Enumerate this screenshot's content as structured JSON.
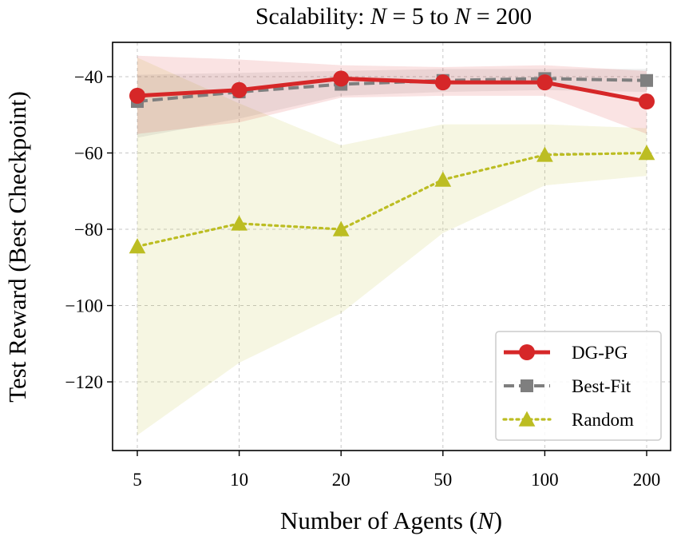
{
  "chart_data": {
    "type": "line",
    "title": "Scalability: N = 5 to N = 200",
    "title_parts": [
      {
        "text": "Scalability: ",
        "italic": false
      },
      {
        "text": "N",
        "italic": true
      },
      {
        "text": " = 5 to ",
        "italic": false
      },
      {
        "text": "N",
        "italic": true
      },
      {
        "text": " = 200",
        "italic": false
      }
    ],
    "xlabel": "Number of Agents (N)",
    "xlabel_parts": [
      {
        "text": "Number of Agents (",
        "italic": false
      },
      {
        "text": "N",
        "italic": true
      },
      {
        "text": ")",
        "italic": false
      }
    ],
    "ylabel": "Test Reward (Best Checkpoint)",
    "categories": [
      "5",
      "10",
      "20",
      "50",
      "100",
      "200"
    ],
    "ylim": [
      -138,
      -31
    ],
    "yticks": [
      -40,
      -60,
      -80,
      -100,
      -120
    ],
    "ytick_labels": [
      "−40",
      "−60",
      "−80",
      "−100",
      "−120"
    ],
    "grid": true,
    "legend_position": "lower-right",
    "series": [
      {
        "name": "DG-PG",
        "color": "#d62728",
        "marker": "circle",
        "linestyle": "solid",
        "values": [
          -45.0,
          -43.5,
          -40.5,
          -41.5,
          -41.5,
          -46.5
        ],
        "band_upper": [
          -34.5,
          -35.5,
          -37.0,
          -37.5,
          -37.0,
          -38.5
        ],
        "band_lower": [
          -55.0,
          -52.0,
          -45.5,
          -45.0,
          -45.0,
          -55.0
        ]
      },
      {
        "name": "Best-Fit",
        "color": "#7f7f7f",
        "marker": "square",
        "linestyle": "dashed",
        "values": [
          -46.5,
          -44.0,
          -42.0,
          -41.0,
          -40.5,
          -41.0
        ],
        "band_upper": [
          -39.5,
          -39.0,
          -38.5,
          -38.0,
          -38.0,
          -38.0
        ],
        "band_lower": [
          -56.0,
          -51.0,
          -45.0,
          -44.0,
          -43.5,
          -44.0
        ]
      },
      {
        "name": "Random",
        "color": "#bcbd22",
        "marker": "triangle",
        "linestyle": "dotted",
        "values": [
          -84.5,
          -78.5,
          -80.0,
          -67.0,
          -60.5,
          -60.0
        ],
        "band_upper": [
          -35.0,
          -47.0,
          -58.0,
          -52.5,
          -52.5,
          -53.5
        ],
        "band_lower": [
          -134.0,
          -115.0,
          -102.0,
          -81.0,
          -68.5,
          -66.0
        ]
      }
    ]
  }
}
